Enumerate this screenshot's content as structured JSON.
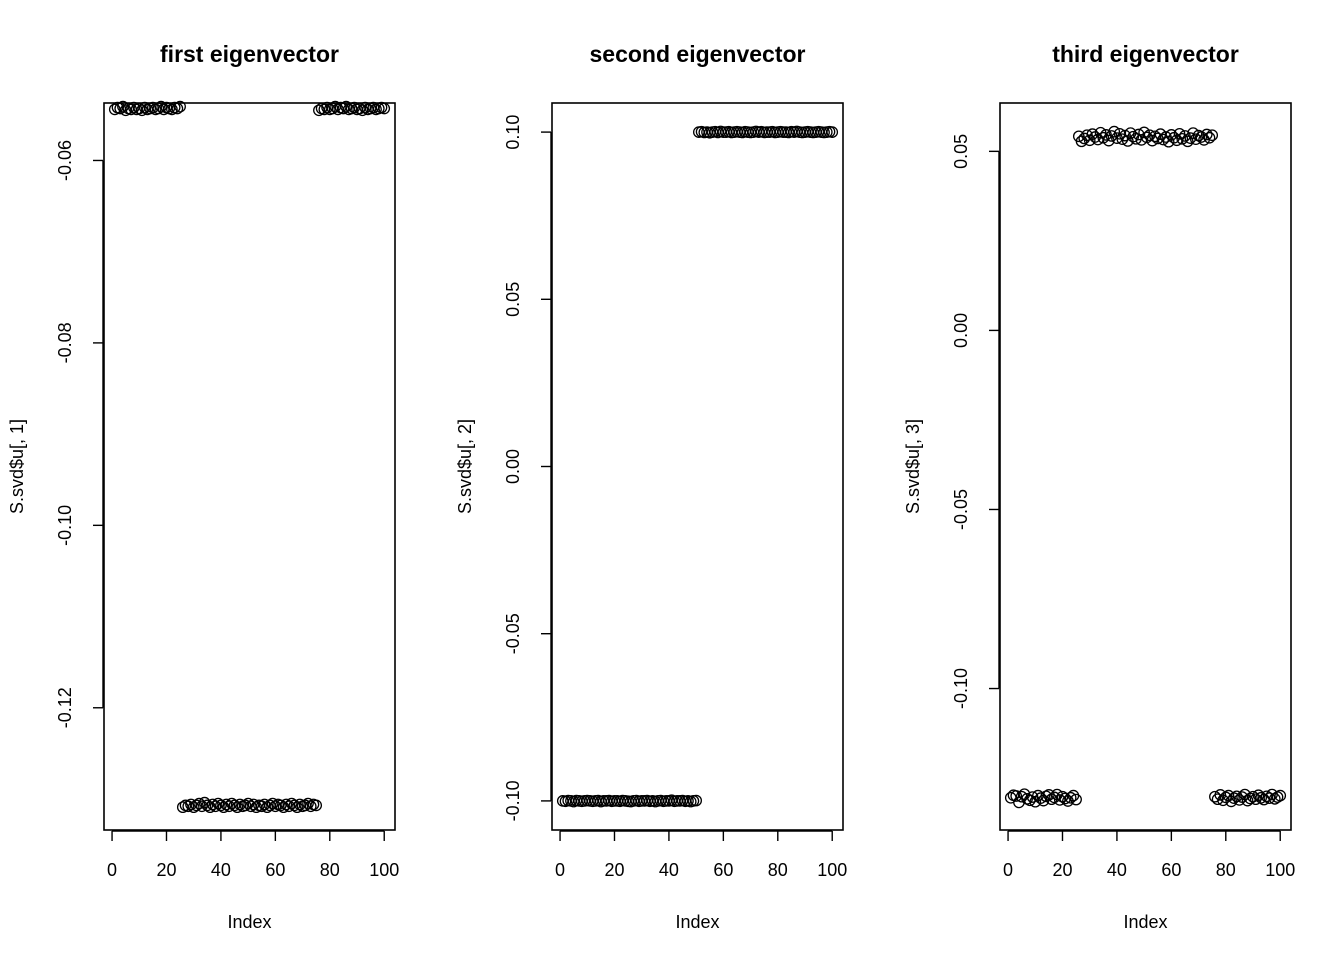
{
  "chart_data": [
    {
      "type": "scatter",
      "title": "first eigenvector",
      "xlabel": "Index",
      "ylabel": "S.svd$u[, 1]",
      "xlim": [
        0,
        100
      ],
      "ylim": [
        -0.1334,
        -0.0537
      ],
      "xticks": [
        0,
        20,
        40,
        60,
        80,
        100
      ],
      "xtick_labels": [
        "0",
        "20",
        "40",
        "60",
        "80",
        "100"
      ],
      "yticks": [
        -0.06,
        -0.08,
        -0.1,
        -0.12
      ],
      "ytick_labels": [
        "-0.06",
        "-0.08",
        "-0.10",
        "-0.12"
      ],
      "grid": false,
      "x": [
        1,
        2,
        3,
        4,
        5,
        6,
        7,
        8,
        9,
        10,
        11,
        12,
        13,
        14,
        15,
        16,
        17,
        18,
        19,
        20,
        21,
        22,
        23,
        24,
        25,
        26,
        27,
        28,
        29,
        30,
        31,
        32,
        33,
        34,
        35,
        36,
        37,
        38,
        39,
        40,
        41,
        42,
        43,
        44,
        45,
        46,
        47,
        48,
        49,
        50,
        51,
        52,
        53,
        54,
        55,
        56,
        57,
        58,
        59,
        60,
        61,
        62,
        63,
        64,
        65,
        66,
        67,
        68,
        69,
        70,
        71,
        72,
        73,
        74,
        75,
        76,
        77,
        78,
        79,
        80,
        81,
        82,
        83,
        84,
        85,
        86,
        87,
        88,
        89,
        90,
        91,
        92,
        93,
        94,
        95,
        96,
        97,
        98,
        99,
        100
      ],
      "y": [
        -0.0544,
        -0.0542,
        -0.0543,
        -0.0541,
        -0.0545,
        -0.0543,
        -0.0544,
        -0.0542,
        -0.0544,
        -0.0543,
        -0.0545,
        -0.0542,
        -0.0544,
        -0.0543,
        -0.0542,
        -0.0544,
        -0.0543,
        -0.0541,
        -0.0544,
        -0.0542,
        -0.0543,
        -0.0544,
        -0.0542,
        -0.0543,
        -0.0541,
        -0.1309,
        -0.1307,
        -0.1308,
        -0.1306,
        -0.1309,
        -0.1307,
        -0.1305,
        -0.1308,
        -0.1304,
        -0.1307,
        -0.1309,
        -0.1306,
        -0.1308,
        -0.1305,
        -0.1307,
        -0.1309,
        -0.1306,
        -0.1308,
        -0.1305,
        -0.1307,
        -0.1309,
        -0.1306,
        -0.1308,
        -0.1307,
        -0.1305,
        -0.1308,
        -0.1306,
        -0.1309,
        -0.1307,
        -0.1308,
        -0.1306,
        -0.1309,
        -0.1307,
        -0.1305,
        -0.1308,
        -0.1306,
        -0.1307,
        -0.1309,
        -0.1306,
        -0.1308,
        -0.1305,
        -0.1307,
        -0.1309,
        -0.1306,
        -0.1308,
        -0.1307,
        -0.1305,
        -0.1308,
        -0.1306,
        -0.1307,
        -0.0545,
        -0.0543,
        -0.0544,
        -0.0542,
        -0.0544,
        -0.0543,
        -0.0541,
        -0.0544,
        -0.0542,
        -0.0543,
        -0.0541,
        -0.0544,
        -0.0543,
        -0.0542,
        -0.0544,
        -0.0543,
        -0.0545,
        -0.0542,
        -0.0544,
        -0.0543,
        -0.0542,
        -0.0544,
        -0.0543,
        -0.0542,
        -0.0543
      ]
    },
    {
      "type": "scatter",
      "title": "second eigenvector",
      "xlabel": "Index",
      "ylabel": "S.svd$u[, 2]",
      "xlim": [
        0,
        100
      ],
      "ylim": [
        -0.1087,
        0.1087
      ],
      "xticks": [
        0,
        20,
        40,
        60,
        80,
        100
      ],
      "xtick_labels": [
        "0",
        "20",
        "40",
        "60",
        "80",
        "100"
      ],
      "yticks": [
        0.1,
        0.05,
        0.0,
        -0.05,
        -0.1
      ],
      "ytick_labels": [
        "0.10",
        "0.05",
        "0.00",
        "-0.05",
        "-0.10"
      ],
      "grid": false,
      "x": [
        1,
        2,
        3,
        4,
        5,
        6,
        7,
        8,
        9,
        10,
        11,
        12,
        13,
        14,
        15,
        16,
        17,
        18,
        19,
        20,
        21,
        22,
        23,
        24,
        25,
        26,
        27,
        28,
        29,
        30,
        31,
        32,
        33,
        34,
        35,
        36,
        37,
        38,
        39,
        40,
        41,
        42,
        43,
        44,
        45,
        46,
        47,
        48,
        49,
        50,
        51,
        52,
        53,
        54,
        55,
        56,
        57,
        58,
        59,
        60,
        61,
        62,
        63,
        64,
        65,
        66,
        67,
        68,
        69,
        70,
        71,
        72,
        73,
        74,
        75,
        76,
        77,
        78,
        79,
        80,
        81,
        82,
        83,
        84,
        85,
        86,
        87,
        88,
        89,
        90,
        91,
        92,
        93,
        94,
        95,
        96,
        97,
        98,
        99,
        100
      ],
      "y": [
        -0.1,
        -0.1001,
        -0.0999,
        -0.1,
        -0.1002,
        -0.0999,
        -0.1,
        -0.1001,
        -0.1,
        -0.0999,
        -0.1,
        -0.1001,
        -0.1,
        -0.0999,
        -0.1002,
        -0.1,
        -0.1,
        -0.0999,
        -0.1001,
        -0.1,
        -0.1,
        -0.1001,
        -0.0999,
        -0.1,
        -0.1001,
        -0.1002,
        -0.1,
        -0.0999,
        -0.1001,
        -0.1,
        -0.1,
        -0.0999,
        -0.1001,
        -0.1,
        -0.1002,
        -0.1,
        -0.0999,
        -0.1001,
        -0.1,
        -0.1,
        -0.0998,
        -0.1001,
        -0.1,
        -0.1,
        -0.0999,
        -0.1001,
        -0.1,
        -0.1002,
        -0.1,
        -0.0999,
        0.1,
        0.1001,
        0.0999,
        0.1,
        0.0998,
        0.1,
        0.1001,
        0.0999,
        0.1002,
        0.1,
        0.1,
        0.1001,
        0.0999,
        0.1,
        0.1001,
        0.1,
        0.0999,
        0.1001,
        0.1,
        0.0999,
        0.1,
        0.1002,
        0.1,
        0.1001,
        0.0999,
        0.1,
        0.1,
        0.1001,
        0.0999,
        0.1,
        0.1001,
        0.1,
        0.1,
        0.0999,
        0.1001,
        0.1,
        0.1002,
        0.1,
        0.0999,
        0.1,
        0.1001,
        0.1,
        0.0999,
        0.1,
        0.1001,
        0.1,
        0.0999,
        0.1,
        0.1001,
        0.1
      ]
    },
    {
      "type": "scatter",
      "title": "third eigenvector",
      "xlabel": "Index",
      "ylabel": "S.svd$u[, 3]",
      "xlim": [
        0,
        100
      ],
      "ylim": [
        -0.1395,
        0.0635
      ],
      "xticks": [
        0,
        20,
        40,
        60,
        80,
        100
      ],
      "xtick_labels": [
        "0",
        "20",
        "40",
        "60",
        "80",
        "100"
      ],
      "yticks": [
        0.05,
        0.0,
        -0.05,
        -0.1
      ],
      "ytick_labels": [
        "0.05",
        "0.00",
        "-0.05",
        "-0.10"
      ],
      "grid": false,
      "x": [
        1,
        2,
        3,
        4,
        5,
        6,
        7,
        8,
        9,
        10,
        11,
        12,
        13,
        14,
        15,
        16,
        17,
        18,
        19,
        20,
        21,
        22,
        23,
        24,
        25,
        26,
        27,
        28,
        29,
        30,
        31,
        32,
        33,
        34,
        35,
        36,
        37,
        38,
        39,
        40,
        41,
        42,
        43,
        44,
        45,
        46,
        47,
        48,
        49,
        50,
        51,
        52,
        53,
        54,
        55,
        56,
        57,
        58,
        59,
        60,
        61,
        62,
        63,
        64,
        65,
        66,
        67,
        68,
        69,
        70,
        71,
        72,
        73,
        74,
        75,
        76,
        77,
        78,
        79,
        80,
        81,
        82,
        83,
        84,
        85,
        86,
        87,
        88,
        89,
        90,
        91,
        92,
        93,
        94,
        95,
        96,
        97,
        98,
        99,
        100
      ],
      "y": [
        -0.1305,
        -0.1298,
        -0.13,
        -0.1318,
        -0.1302,
        -0.1295,
        -0.1308,
        -0.1312,
        -0.1303,
        -0.1316,
        -0.1299,
        -0.1306,
        -0.1313,
        -0.1301,
        -0.1297,
        -0.1309,
        -0.1304,
        -0.1296,
        -0.1311,
        -0.1302,
        -0.1307,
        -0.1314,
        -0.1305,
        -0.1299,
        -0.131,
        0.0542,
        0.0528,
        0.0536,
        0.0545,
        0.0531,
        0.0548,
        0.054,
        0.0533,
        0.0552,
        0.0538,
        0.0546,
        0.053,
        0.0543,
        0.0555,
        0.0537,
        0.0549,
        0.0534,
        0.0544,
        0.0529,
        0.0551,
        0.0541,
        0.0535,
        0.0547,
        0.0532,
        0.0553,
        0.0539,
        0.0545,
        0.053,
        0.0542,
        0.0536,
        0.0548,
        0.0533,
        0.054,
        0.0527,
        0.0546,
        0.0538,
        0.0531,
        0.0549,
        0.0535,
        0.0543,
        0.0528,
        0.0537,
        0.0551,
        0.0534,
        0.0544,
        0.054,
        0.0532,
        0.0547,
        0.0538,
        0.0545,
        -0.1302,
        -0.1309,
        -0.1297,
        -0.1312,
        -0.1304,
        -0.1299,
        -0.1315,
        -0.1306,
        -0.1301,
        -0.1311,
        -0.1303,
        -0.1296,
        -0.1313,
        -0.1307,
        -0.1302,
        -0.1309,
        -0.1298,
        -0.1305,
        -0.131,
        -0.1301,
        -0.1306,
        -0.1296,
        -0.1308,
        -0.1303,
        -0.1299
      ]
    }
  ]
}
